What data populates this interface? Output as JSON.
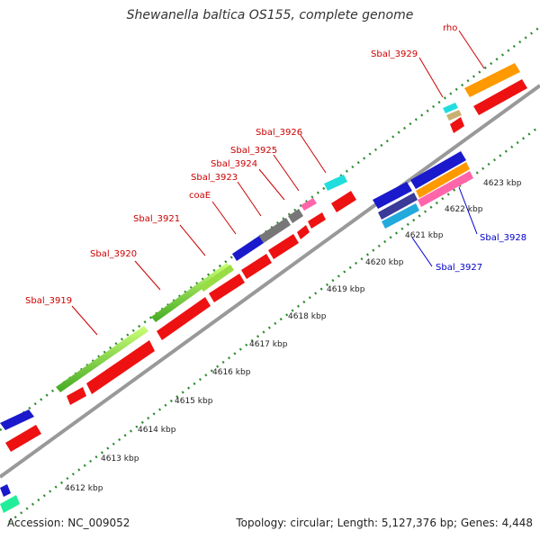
{
  "title": "Shewanella baltica OS155, complete genome",
  "footer": {
    "accession": "Accession: NC_009052",
    "stats": "Topology: circular; Length: 5,127,376 bp; Genes: 4,448"
  },
  "ticks": [
    "4612 kbp",
    "4613 kbp",
    "4614 kbp",
    "4615 kbp",
    "4616 kbp",
    "4617 kbp",
    "4618 kbp",
    "4619 kbp",
    "4620 kbp",
    "4621 kbp",
    "4622 kbp",
    "4623 kbp"
  ],
  "labels_forward": [
    "Sbal_3919",
    "Sbal_3920",
    "Sbal_3921",
    "coaE",
    "Sbal_3923",
    "Sbal_3924",
    "Sbal_3925",
    "Sbal_3926",
    "Sbal_3929",
    "rho"
  ],
  "labels_reverse": [
    "Sbal_3927",
    "Sbal_3928"
  ],
  "colors": {
    "forward_label": "#cc0000",
    "reverse_label": "#0000cc",
    "cds": "#ee1111",
    "backbone": "#999999",
    "dots": "#2e8b2e",
    "blue": "#1a1acc",
    "lightgreen": "#99dd44",
    "orange": "#ff9900",
    "cyan": "#22dddd",
    "gray": "#777777",
    "pink": "#ff66aa",
    "teal": "#22ee99"
  }
}
